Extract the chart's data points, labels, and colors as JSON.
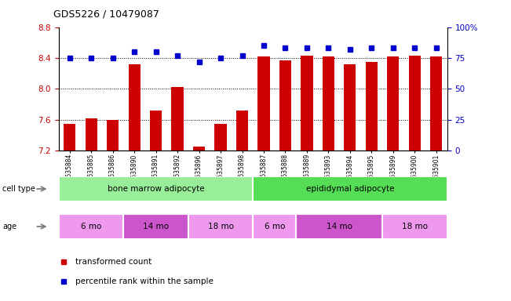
{
  "title": "GDS5226 / 10479087",
  "samples": [
    "GSM635884",
    "GSM635885",
    "GSM635886",
    "GSM635890",
    "GSM635891",
    "GSM635892",
    "GSM635896",
    "GSM635897",
    "GSM635898",
    "GSM635887",
    "GSM635888",
    "GSM635889",
    "GSM635893",
    "GSM635894",
    "GSM635895",
    "GSM635899",
    "GSM635900",
    "GSM635901"
  ],
  "bar_values": [
    7.55,
    7.62,
    7.6,
    8.32,
    7.72,
    8.02,
    7.25,
    7.55,
    7.72,
    8.42,
    8.37,
    8.43,
    8.42,
    8.32,
    8.35,
    8.42,
    8.43,
    8.42
  ],
  "dot_values": [
    75,
    75,
    75,
    80,
    80,
    77,
    72,
    75,
    77,
    85,
    83,
    83,
    83,
    82,
    83,
    83,
    83,
    83
  ],
  "ylim_left": [
    7.2,
    8.8
  ],
  "ylim_right": [
    0,
    100
  ],
  "yticks_left": [
    7.2,
    7.6,
    8.0,
    8.4,
    8.8
  ],
  "yticks_right": [
    0,
    25,
    50,
    75,
    100
  ],
  "bar_color": "#CC0000",
  "dot_color": "#0000CC",
  "cell_type_groups": [
    {
      "label": "bone marrow adipocyte",
      "start": 0,
      "end": 9,
      "color": "#99EE99"
    },
    {
      "label": "epididymal adipocyte",
      "start": 9,
      "end": 18,
      "color": "#55DD55"
    }
  ],
  "age_groups": [
    {
      "label": "6 mo",
      "start": 0,
      "end": 3,
      "color": "#EE99EE"
    },
    {
      "label": "14 mo",
      "start": 3,
      "end": 6,
      "color": "#CC55CC"
    },
    {
      "label": "18 mo",
      "start": 6,
      "end": 9,
      "color": "#EE99EE"
    },
    {
      "label": "6 mo",
      "start": 9,
      "end": 11,
      "color": "#EE99EE"
    },
    {
      "label": "14 mo",
      "start": 11,
      "end": 15,
      "color": "#CC55CC"
    },
    {
      "label": "18 mo",
      "start": 15,
      "end": 18,
      "color": "#EE99EE"
    }
  ],
  "legend_bar_label": "transformed count",
  "legend_dot_label": "percentile rank within the sample",
  "cell_type_label": "cell type",
  "age_label": "age",
  "left_axis_color": "#CC0000",
  "right_axis_color": "#0000CC"
}
